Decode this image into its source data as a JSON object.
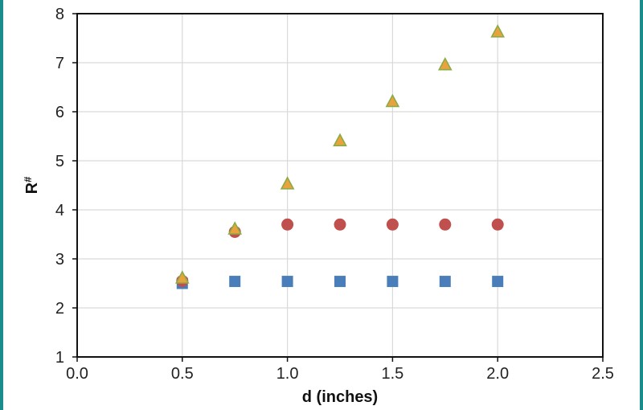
{
  "chart_data": {
    "type": "scatter",
    "xlabel": "d (inches)",
    "ylabel": "R",
    "ylabel_superscript": "#",
    "xlim": [
      0.0,
      2.5
    ],
    "ylim": [
      1,
      8
    ],
    "x_ticks": [
      0.0,
      0.5,
      1.0,
      1.5,
      2.0,
      2.5
    ],
    "x_tick_labels": [
      "0.0",
      "0.5",
      "1.0",
      "1.5",
      "2.0",
      "2.5"
    ],
    "y_ticks": [
      1,
      2,
      3,
      4,
      5,
      6,
      7,
      8
    ],
    "y_tick_labels": [
      "1",
      "2",
      "3",
      "4",
      "5",
      "6",
      "7",
      "8"
    ],
    "grid": true,
    "series": [
      {
        "marker": "square",
        "color": "#4a7ebb",
        "x": [
          0.5,
          0.75,
          1.0,
          1.25,
          1.5,
          1.75,
          2.0
        ],
        "y": [
          2.5,
          2.54,
          2.54,
          2.54,
          2.54,
          2.54,
          2.54
        ]
      },
      {
        "marker": "circle",
        "color": "#c0504d",
        "x": [
          0.5,
          0.75,
          1.0,
          1.25,
          1.5,
          1.75,
          2.0
        ],
        "y": [
          2.55,
          3.55,
          3.7,
          3.7,
          3.7,
          3.7,
          3.7
        ]
      },
      {
        "marker": "triangle",
        "color": "#e8a33c",
        "edge_color": "#8bab46",
        "x": [
          0.5,
          0.75,
          1.0,
          1.25,
          1.5,
          1.75,
          2.0
        ],
        "y": [
          2.6,
          3.6,
          4.52,
          5.4,
          6.2,
          6.95,
          7.62
        ]
      }
    ]
  }
}
